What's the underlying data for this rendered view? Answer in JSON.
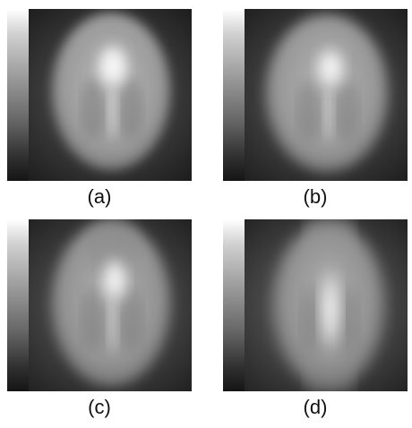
{
  "panels": [
    {
      "id": "a",
      "caption": "(a)"
    },
    {
      "id": "b",
      "caption": "(b)"
    },
    {
      "id": "c",
      "caption": "(c)"
    },
    {
      "id": "d",
      "caption": "(d)"
    }
  ],
  "colors": {
    "background": "#ffffff",
    "image_dark": "#1b1b1b",
    "image_light": "#ffffff"
  }
}
